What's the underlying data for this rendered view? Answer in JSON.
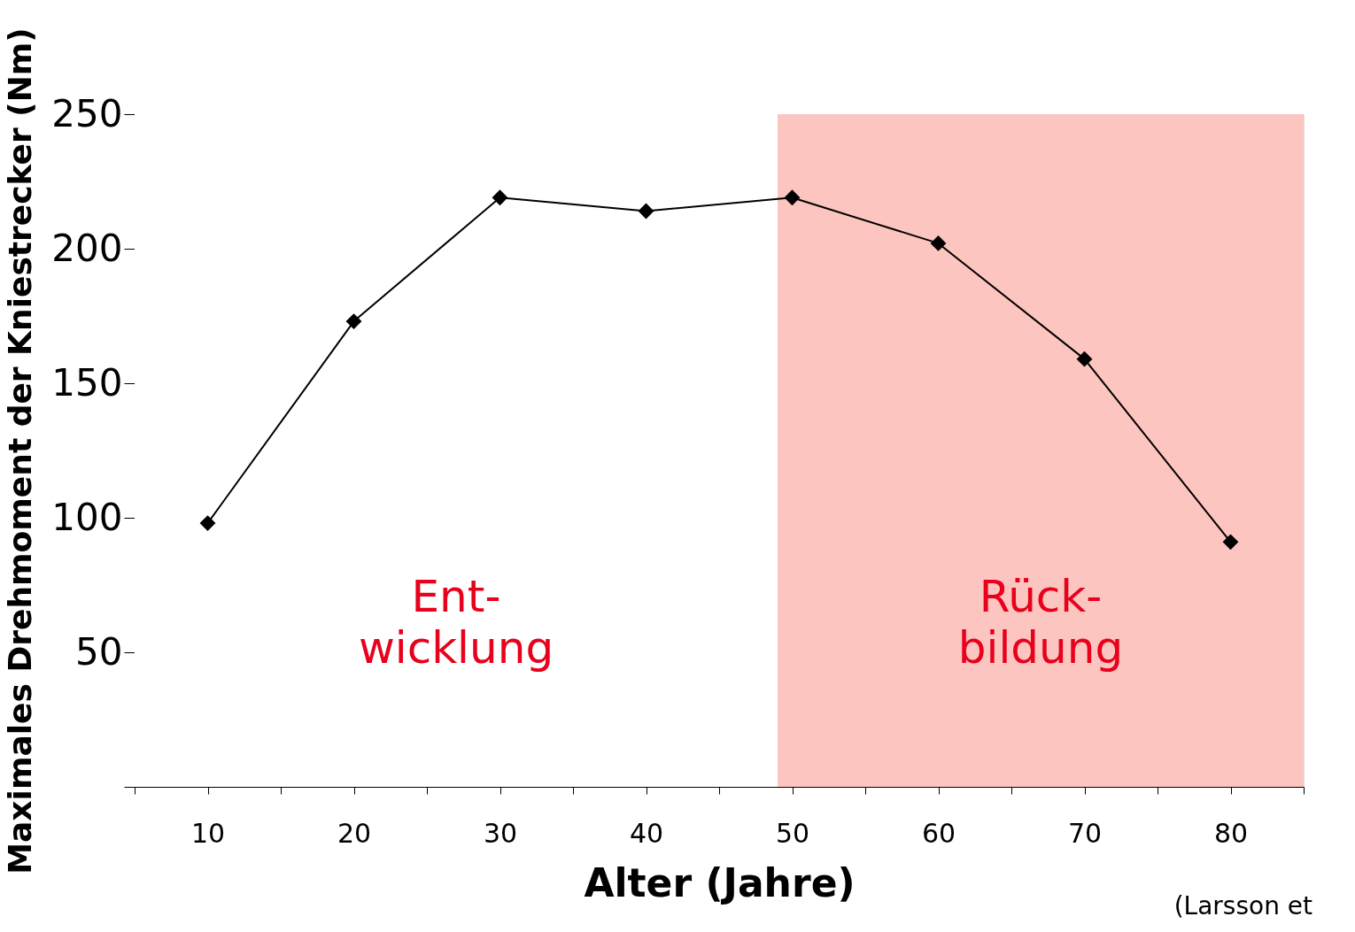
{
  "chart_data": {
    "type": "line",
    "xlabel": "Alter (Jahre)",
    "ylabel": "Maximales Drehmoment der Kniestrecker (Nm)",
    "x": [
      10,
      20,
      30,
      40,
      50,
      60,
      70,
      80
    ],
    "series": [
      {
        "color": "#000000",
        "values": [
          98,
          173,
          219,
          214,
          219,
          202,
          159,
          91
        ]
      }
    ],
    "marker": "diamond",
    "line_style": "solid",
    "grid": false,
    "legend": false,
    "xlim": [
      5,
      85
    ],
    "ylim": [
      0,
      250
    ],
    "xticks": [
      {
        "value": 5,
        "label": null
      },
      10,
      {
        "value": 15,
        "label": null
      },
      20,
      {
        "value": 25,
        "label": null
      },
      30,
      {
        "value": 35,
        "label": null
      },
      40,
      {
        "value": 45,
        "label": null
      },
      50,
      {
        "value": 55,
        "label": null
      },
      60,
      {
        "value": 65,
        "label": null
      },
      70,
      {
        "value": 75,
        "label": null
      },
      80,
      {
        "value": 85,
        "label": null
      }
    ],
    "yticks": [
      {
        "value": 0,
        "label": null
      },
      50,
      100,
      150,
      200,
      250
    ],
    "bands": [
      {
        "axis": "x",
        "from": 5,
        "to": 49,
        "label": "Ent-\nwicklung",
        "color": "#ffffff"
      },
      {
        "axis": "x",
        "from": 49,
        "to": 85,
        "label": "Rück-\nbildung",
        "color": "#fcc5c0"
      }
    ],
    "annotations": [
      "(Larsson et"
    ]
  }
}
